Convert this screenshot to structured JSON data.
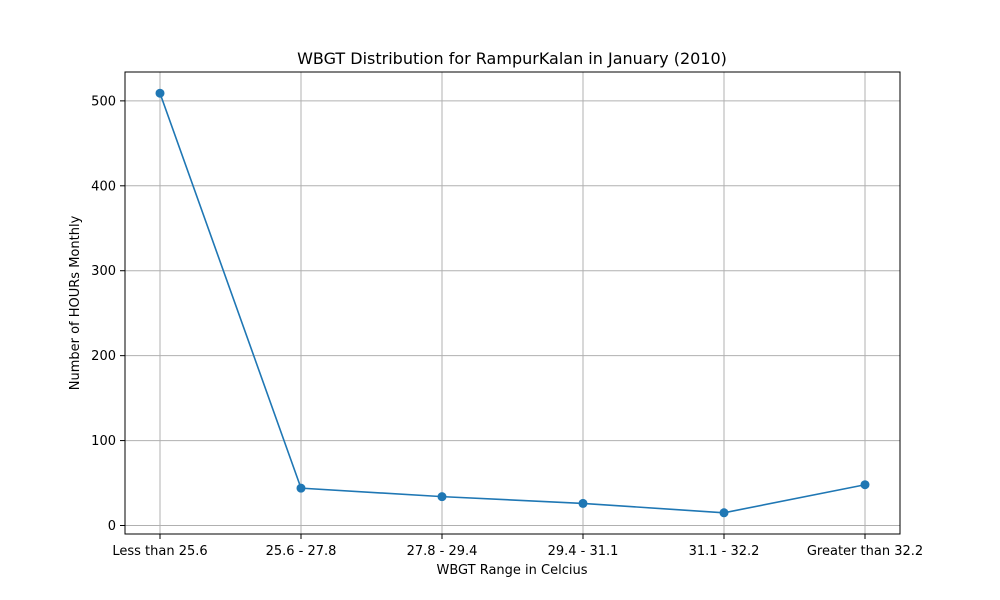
{
  "chart_data": {
    "type": "line",
    "title": "WBGT Distribution for RampurKalan in January (2010)",
    "xlabel": "WBGT Range in Celcius",
    "ylabel": "Number of HOURs Monthly",
    "categories": [
      "Less than 25.6",
      "25.6 - 27.8",
      "27.8 - 29.4",
      "29.4 - 31.1",
      "31.1 - 32.2",
      "Greater than 32.2"
    ],
    "series": [
      {
        "values": [
          509,
          44,
          34,
          26,
          15,
          48
        ],
        "color": "#1f77b4"
      }
    ],
    "ylim": [
      -10,
      534
    ],
    "yticks": [
      0,
      100,
      200,
      300,
      400,
      500
    ],
    "grid": true,
    "marker": "circle"
  }
}
